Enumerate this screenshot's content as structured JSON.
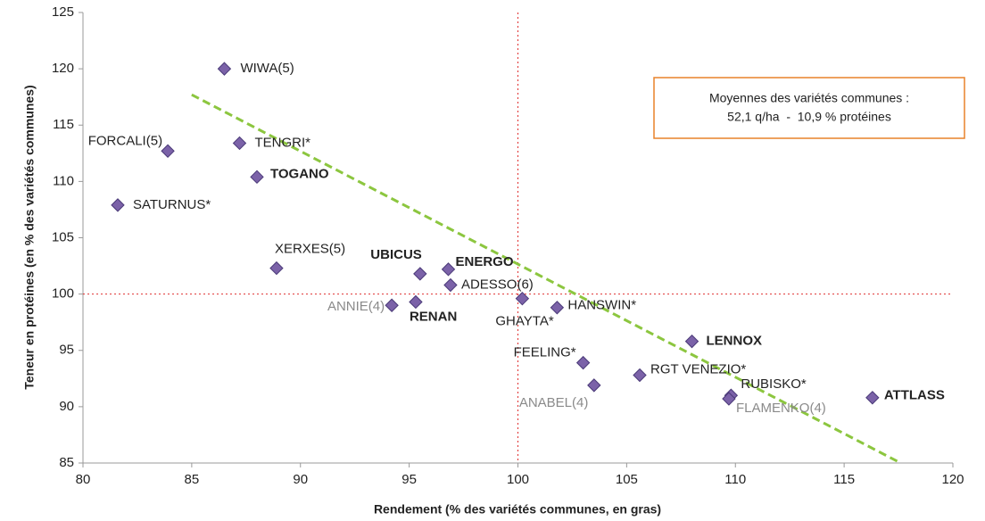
{
  "chart_data": {
    "type": "scatter",
    "xlabel": "Rendement (% des variétés communes, en gras)",
    "ylabel": "Teneur en protéines (en % des variétés communes)",
    "xlim": [
      80,
      120
    ],
    "xticks": [
      80,
      85,
      90,
      95,
      100,
      105,
      110,
      115,
      120
    ],
    "ylim": [
      85,
      125
    ],
    "yticks": [
      85,
      90,
      95,
      100,
      105,
      110,
      115,
      120,
      125
    ],
    "color": "#7b62a8",
    "labels": [
      "WIWA(5)",
      "FORCALI(5)",
      "TENGRI*",
      "TOGANO",
      "SATURNUS*",
      "XERXES(5)",
      "UBICUS",
      "ENERGO",
      "ADESSO(6)",
      "GHAYTA*",
      "ANNIE(4)",
      "RENAN",
      "HANSWIN*",
      "LENNOX",
      "FEELING*",
      "ANABEL(4)",
      "RGT VENEZIO*",
      "RUBISKO*",
      "FLAMENKO(4)",
      "ATTLASS"
    ],
    "x": [
      86.5,
      83.9,
      87.2,
      88.0,
      81.6,
      88.9,
      95.5,
      96.8,
      96.9,
      100.2,
      94.2,
      95.3,
      101.8,
      108.0,
      103.0,
      103.5,
      105.6,
      109.8,
      109.7,
      116.3
    ],
    "values": [
      120.0,
      112.7,
      113.4,
      110.4,
      107.9,
      102.3,
      101.8,
      102.2,
      100.8,
      99.6,
      99.0,
      99.3,
      98.8,
      95.8,
      93.9,
      91.9,
      92.8,
      91.0,
      90.7,
      90.8
    ],
    "label_styles": [
      "normal",
      "normal",
      "normal",
      "bold",
      "normal",
      "normal",
      "bold",
      "bold",
      "normal",
      "normal",
      "gray",
      "bold",
      "normal",
      "bold",
      "normal",
      "gray",
      "normal",
      "normal",
      "gray",
      "bold"
    ],
    "reference_lines": {
      "x": 100,
      "y": 100,
      "color": "#e03030"
    },
    "trendline": {
      "x": [
        85,
        117.6
      ],
      "y": [
        117.7,
        85
      ],
      "color": "#8cc63f"
    },
    "annotation": [
      "Moyennes des variétés communes :",
      "52,1 q/ha  -  10,9 % protéines"
    ]
  }
}
